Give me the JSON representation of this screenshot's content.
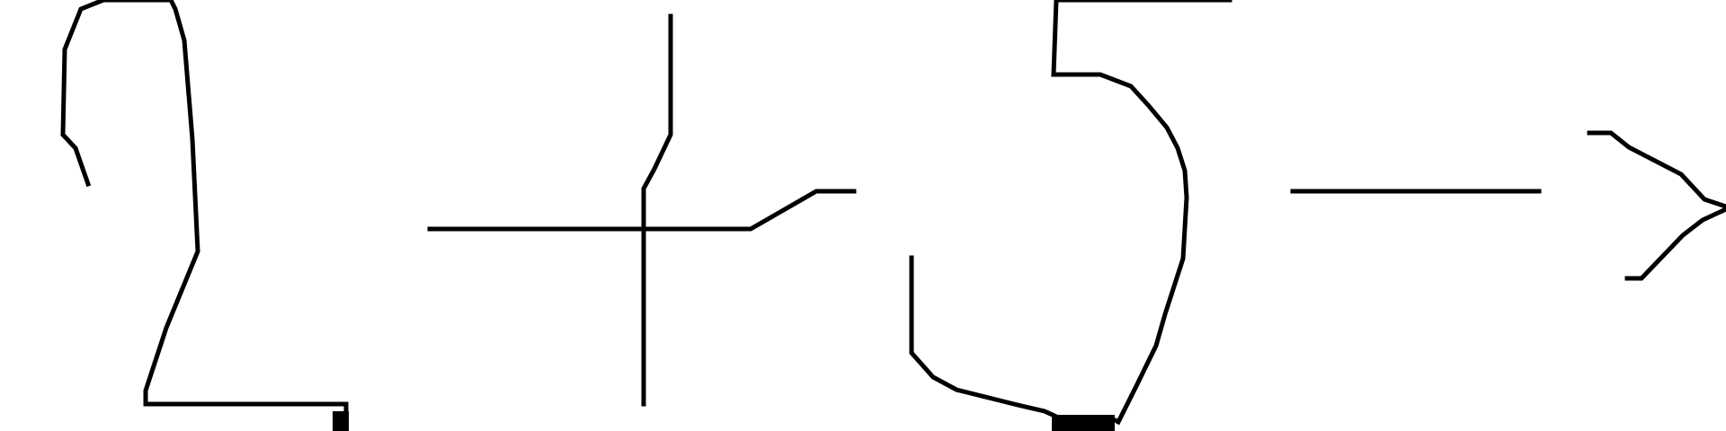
{
  "strokes": [
    {
      "name": "digit-2-stroke",
      "symbol": "2"
    },
    {
      "name": "plus-sign-stroke",
      "symbol": "+"
    },
    {
      "name": "digit-5-stroke",
      "symbol": "5"
    },
    {
      "name": "minus-sign-stroke",
      "symbol": "-"
    },
    {
      "name": "greater-than-sign-stroke",
      "symbol": ">"
    }
  ],
  "colors": {
    "ink": "#000000",
    "background": "#ffffff"
  }
}
